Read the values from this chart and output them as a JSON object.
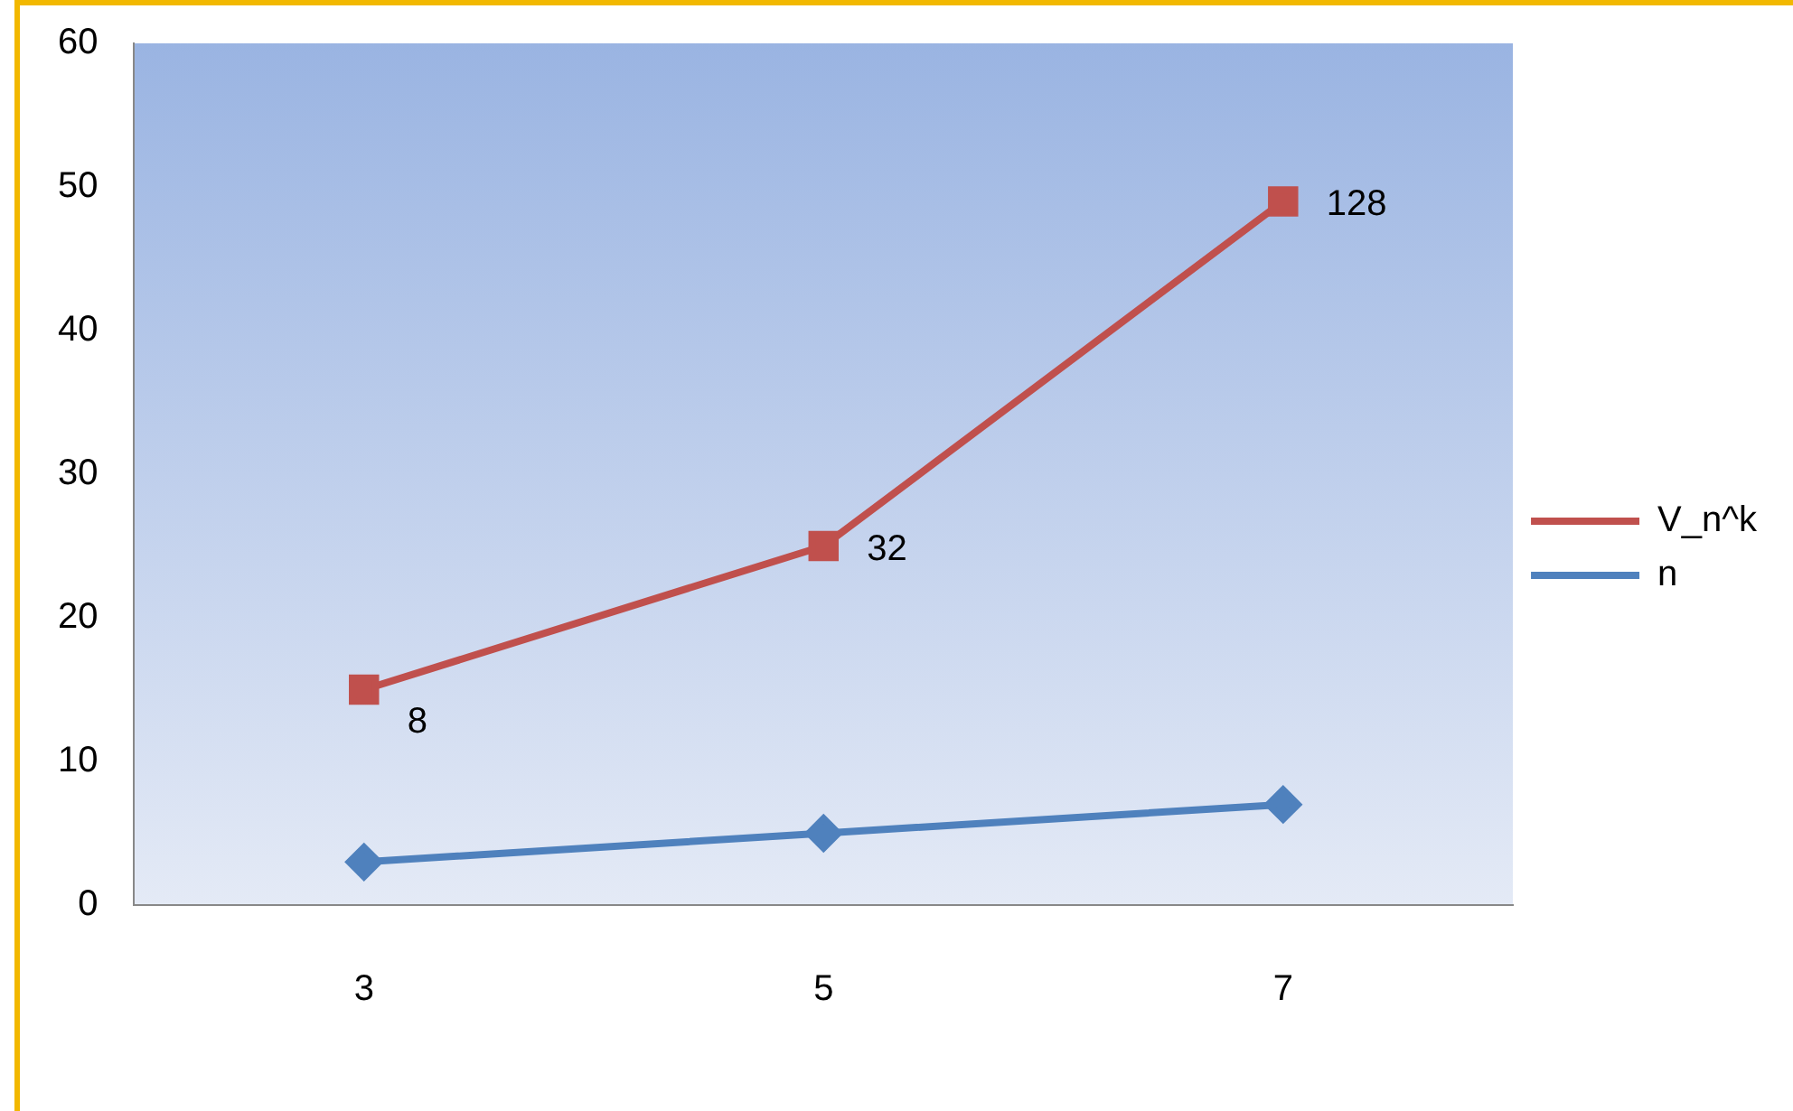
{
  "chart_data": {
    "type": "line",
    "categories": [
      "3",
      "5",
      "7"
    ],
    "series": [
      {
        "name": "V_n^k",
        "color": "#c0504d",
        "values": [
          15,
          25,
          49
        ],
        "marker": "square"
      },
      {
        "name": "n",
        "color": "#4f81bd",
        "values": [
          3,
          5,
          7
        ],
        "marker": "diamond"
      }
    ],
    "annotations": [
      {
        "text": "8",
        "x": "3",
        "y": 15
      },
      {
        "text": "32",
        "x": "5",
        "y": 25
      },
      {
        "text": "128",
        "x": "7",
        "y": 49
      }
    ],
    "ylim": [
      0,
      60
    ],
    "yticks": [
      0,
      10,
      20,
      30,
      40,
      50,
      60
    ],
    "grid": false,
    "legend": "right",
    "line_style": "solid"
  }
}
